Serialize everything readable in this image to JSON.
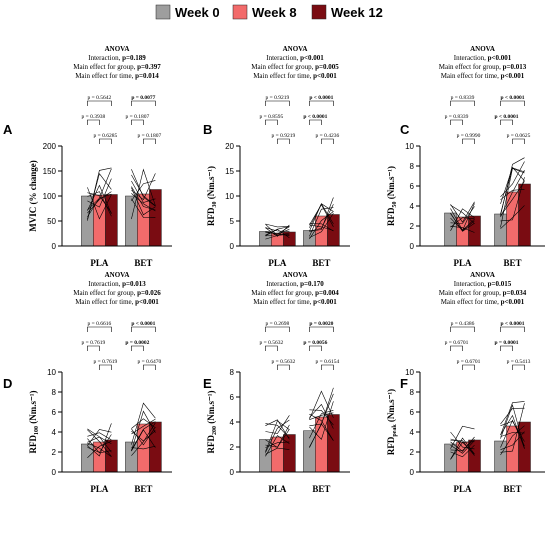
{
  "legend": [
    {
      "label": "Week 0",
      "color": "#9e9e9e"
    },
    {
      "label": "Week 8",
      "color": "#f26b6b"
    },
    {
      "label": "Week 12",
      "color": "#7a0c12"
    }
  ],
  "colors": {
    "week0": "#9e9e9e",
    "week8": "#f26b6b",
    "week12": "#7a0c12"
  },
  "chart_data": [
    {
      "type": "bar",
      "panel": "A",
      "ylabel": {
        "main": "MVIC (% change)",
        "sub": "",
        "tail": ""
      },
      "ylim": [
        0,
        200
      ],
      "yticks": [
        0,
        50,
        100,
        150,
        200
      ],
      "categories": [
        "PLA",
        "BET"
      ],
      "series": [
        {
          "name": "Week 0",
          "values": [
            100,
            100
          ]
        },
        {
          "name": "Week 8",
          "values": [
            102,
            104
          ]
        },
        {
          "name": "Week 12",
          "values": [
            103,
            113
          ]
        }
      ],
      "anova": {
        "title": "ANOVA",
        "interaction": "p=0.189",
        "group": "p=0.397",
        "time": "p=0.014"
      },
      "brackets": [
        {
          "group": 0,
          "from": 0,
          "to": 2,
          "label": "p = 0.5642",
          "bold": false
        },
        {
          "group": 0,
          "from": 0,
          "to": 1,
          "label": "p = 0.3938",
          "bold": false
        },
        {
          "group": 0,
          "from": 1,
          "to": 2,
          "label": "p = 0.6285",
          "bold": false
        },
        {
          "group": 1,
          "from": 0,
          "to": 2,
          "label": "p = 0.0077",
          "bold": true
        },
        {
          "group": 1,
          "from": 1,
          "to": 2,
          "label": "p = 0.1807",
          "bold": false
        },
        {
          "group": 1,
          "from": 0,
          "to": 1,
          "label": "p = 0.1807",
          "bold": false
        }
      ]
    },
    {
      "type": "bar",
      "panel": "B",
      "ylabel": {
        "main": "RFD",
        "sub": "30",
        "tail": " (Nm.s⁻¹)"
      },
      "ylim": [
        0,
        20
      ],
      "yticks": [
        0,
        5,
        10,
        15,
        20
      ],
      "categories": [
        "PLA",
        "BET"
      ],
      "series": [
        {
          "name": "Week 0",
          "values": [
            2.9,
            3.1
          ]
        },
        {
          "name": "Week 8",
          "values": [
            2.6,
            6.0
          ]
        },
        {
          "name": "Week 12",
          "values": [
            2.8,
            6.3
          ]
        }
      ],
      "anova": {
        "title": "ANOVA",
        "interaction": "p<0.001",
        "group": "p=0.005",
        "time": "p<0.001"
      },
      "brackets": [
        {
          "group": 0,
          "from": 0,
          "to": 2,
          "label": "p = 0.9219",
          "bold": false
        },
        {
          "group": 0,
          "from": 0,
          "to": 1,
          "label": "p = 0.8595",
          "bold": false
        },
        {
          "group": 0,
          "from": 1,
          "to": 2,
          "label": "p = 0.9219",
          "bold": false
        },
        {
          "group": 1,
          "from": 0,
          "to": 2,
          "label": "p < 0.0001",
          "bold": true
        },
        {
          "group": 1,
          "from": 1,
          "to": 2,
          "label": "p = 0.4236",
          "bold": false
        },
        {
          "group": 1,
          "from": 0,
          "to": 1,
          "label": "p < 0.0001",
          "bold": true
        }
      ]
    },
    {
      "type": "bar",
      "panel": "C",
      "ylabel": {
        "main": "RFD",
        "sub": "50",
        "tail": " (Nm.s⁻¹)"
      },
      "ylim": [
        0,
        10
      ],
      "yticks": [
        0,
        2,
        4,
        6,
        8,
        10
      ],
      "categories": [
        "PLA",
        "BET"
      ],
      "series": [
        {
          "name": "Week 0",
          "values": [
            3.3,
            3.2
          ]
        },
        {
          "name": "Week 8",
          "values": [
            2.9,
            5.4
          ]
        },
        {
          "name": "Week 12",
          "values": [
            3.0,
            6.2
          ]
        }
      ],
      "anova": {
        "title": "ANOVA",
        "interaction": "p<0.001",
        "group": "p=0.013",
        "time": "p<0.001"
      },
      "brackets": [
        {
          "group": 0,
          "from": 0,
          "to": 2,
          "label": "p = 0.8339",
          "bold": false
        },
        {
          "group": 0,
          "from": 0,
          "to": 1,
          "label": "p = 0.8339",
          "bold": false
        },
        {
          "group": 0,
          "from": 1,
          "to": 2,
          "label": "p = 0.9990",
          "bold": false
        },
        {
          "group": 1,
          "from": 0,
          "to": 2,
          "label": "p < 0.0001",
          "bold": true
        },
        {
          "group": 1,
          "from": 1,
          "to": 2,
          "label": "p = 0.0625",
          "bold": false
        },
        {
          "group": 1,
          "from": 0,
          "to": 1,
          "label": "p < 0.0001",
          "bold": true
        }
      ]
    },
    {
      "type": "bar",
      "panel": "D",
      "ylabel": {
        "main": "RFD",
        "sub": "100",
        "tail": " (Nm.s⁻¹)"
      },
      "ylim": [
        0,
        10
      ],
      "yticks": [
        0,
        2,
        4,
        6,
        8,
        10
      ],
      "categories": [
        "PLA",
        "BET"
      ],
      "series": [
        {
          "name": "Week 0",
          "values": [
            2.8,
            3.0
          ]
        },
        {
          "name": "Week 8",
          "values": [
            3.0,
            4.8
          ]
        },
        {
          "name": "Week 12",
          "values": [
            3.2,
            5.0
          ]
        }
      ],
      "anova": {
        "title": "ANOVA",
        "interaction": "p=0.013",
        "group": "p=0.026",
        "time": "p<0.001"
      },
      "brackets": [
        {
          "group": 0,
          "from": 0,
          "to": 2,
          "label": "p = 0.6616",
          "bold": false
        },
        {
          "group": 0,
          "from": 0,
          "to": 1,
          "label": "p = 0.7619",
          "bold": false
        },
        {
          "group": 0,
          "from": 1,
          "to": 2,
          "label": "p = 0.7619",
          "bold": false
        },
        {
          "group": 1,
          "from": 0,
          "to": 2,
          "label": "p < 0.0001",
          "bold": true
        },
        {
          "group": 1,
          "from": 1,
          "to": 2,
          "label": "p = 0.6470",
          "bold": false
        },
        {
          "group": 1,
          "from": 0,
          "to": 1,
          "label": "p = 0.0002",
          "bold": true
        }
      ]
    },
    {
      "type": "bar",
      "panel": "E",
      "ylabel": {
        "main": "RFD",
        "sub": "200",
        "tail": " (Nm.s⁻¹)"
      },
      "ylim": [
        0,
        8
      ],
      "yticks": [
        0,
        2,
        4,
        6,
        8
      ],
      "categories": [
        "PLA",
        "BET"
      ],
      "series": [
        {
          "name": "Week 0",
          "values": [
            2.6,
            3.3
          ]
        },
        {
          "name": "Week 8",
          "values": [
            2.8,
            4.4
          ]
        },
        {
          "name": "Week 12",
          "values": [
            3.0,
            4.6
          ]
        }
      ],
      "anova": {
        "title": "ANOVA",
        "interaction": "p=0.170",
        "group": "p=0.004",
        "time": "p<0.001"
      },
      "brackets": [
        {
          "group": 0,
          "from": 0,
          "to": 2,
          "label": "p = 0.2698",
          "bold": false
        },
        {
          "group": 0,
          "from": 0,
          "to": 1,
          "label": "p = 0.5632",
          "bold": false
        },
        {
          "group": 0,
          "from": 1,
          "to": 2,
          "label": "p = 0.5632",
          "bold": false
        },
        {
          "group": 1,
          "from": 0,
          "to": 2,
          "label": "p = 0.0020",
          "bold": true
        },
        {
          "group": 1,
          "from": 1,
          "to": 2,
          "label": "p = 0.6154",
          "bold": false
        },
        {
          "group": 1,
          "from": 0,
          "to": 1,
          "label": "p = 0.0056",
          "bold": true
        }
      ]
    },
    {
      "type": "bar",
      "panel": "F",
      "ylabel": {
        "main": "RFD",
        "sub": "peak",
        "tail": " (Nm.s⁻¹)"
      },
      "ylim": [
        0,
        10
      ],
      "yticks": [
        0,
        2,
        4,
        6,
        8,
        10
      ],
      "categories": [
        "PLA",
        "BET"
      ],
      "series": [
        {
          "name": "Week 0",
          "values": [
            2.8,
            3.1
          ]
        },
        {
          "name": "Week 8",
          "values": [
            3.0,
            4.6
          ]
        },
        {
          "name": "Week 12",
          "values": [
            3.2,
            5.0
          ]
        }
      ],
      "anova": {
        "title": "ANOVA",
        "interaction": "p=0.015",
        "group": "p=0.034",
        "time": "p<0.001"
      },
      "brackets": [
        {
          "group": 0,
          "from": 0,
          "to": 2,
          "label": "p = 0.4386",
          "bold": false
        },
        {
          "group": 0,
          "from": 0,
          "to": 1,
          "label": "p = 0.6701",
          "bold": false
        },
        {
          "group": 0,
          "from": 1,
          "to": 2,
          "label": "p = 0.6701",
          "bold": false
        },
        {
          "group": 1,
          "from": 0,
          "to": 2,
          "label": "p < 0.0001",
          "bold": true
        },
        {
          "group": 1,
          "from": 1,
          "to": 2,
          "label": "p = 0.5413",
          "bold": false
        },
        {
          "group": 1,
          "from": 0,
          "to": 1,
          "label": "p = 0.0001",
          "bold": true
        }
      ]
    }
  ]
}
